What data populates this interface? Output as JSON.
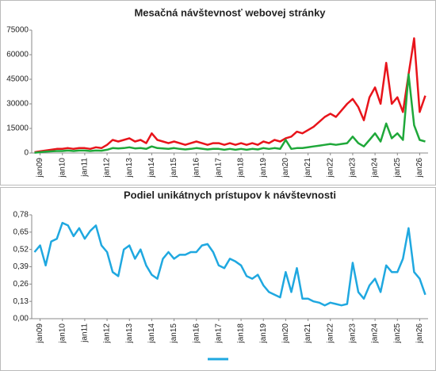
{
  "chart_data": [
    {
      "type": "line",
      "title": "Mesačná návštevnosť webovej stránky",
      "categories": [
        null,
        "jan09",
        null,
        null,
        null,
        "jan10",
        null,
        null,
        null,
        "jan11",
        null,
        null,
        null,
        "jan12",
        null,
        null,
        null,
        "jan13",
        null,
        null,
        null,
        "jan14",
        null,
        null,
        null,
        "jan15",
        null,
        null,
        null,
        "jan16",
        null,
        null,
        null,
        "jan17",
        null,
        null,
        null,
        "jan18",
        null,
        null,
        null,
        "jan19",
        null,
        null,
        null,
        "jan20",
        null,
        null,
        null,
        "jan21",
        null,
        null,
        null,
        "jan22",
        null,
        null,
        null,
        "jan23",
        null,
        null,
        null,
        "jan24",
        null,
        null,
        null,
        "jan25",
        null,
        null,
        null,
        "jan26",
        null
      ],
      "series": [
        {
          "color": "#e8141b",
          "values": [
            500,
            1000,
            1500,
            2000,
            2500,
            2500,
            3000,
            2500,
            3000,
            3000,
            2500,
            3500,
            3000,
            5000,
            8000,
            7000,
            8000,
            9000,
            7000,
            8000,
            6000,
            12000,
            8000,
            7000,
            6000,
            7000,
            6000,
            5000,
            6000,
            7000,
            6000,
            5000,
            6000,
            6000,
            5000,
            6000,
            5000,
            6000,
            5000,
            6000,
            5000,
            7000,
            6000,
            8000,
            7000,
            9000,
            10000,
            13000,
            12000,
            14000,
            16000,
            19000,
            22000,
            24000,
            22000,
            26000,
            30000,
            33000,
            28000,
            20000,
            34000,
            40000,
            30000,
            55000,
            30000,
            34000,
            25000,
            48000,
            70000,
            25000,
            35000
          ]
        },
        {
          "color": "#1fa83a",
          "values": [
            200,
            500,
            800,
            1000,
            1200,
            1200,
            1500,
            1200,
            1500,
            1500,
            1200,
            1500,
            1400,
            2000,
            3000,
            2800,
            3000,
            3500,
            2800,
            3000,
            2500,
            4000,
            3000,
            2800,
            2500,
            3000,
            2500,
            2200,
            2500,
            3000,
            2600,
            2200,
            2500,
            2500,
            2000,
            2500,
            2000,
            2500,
            2000,
            2500,
            2200,
            3000,
            2500,
            3000,
            2500,
            8000,
            2500,
            3000,
            3000,
            3500,
            4000,
            4500,
            5000,
            5500,
            5000,
            5500,
            6000,
            10000,
            6000,
            4000,
            8000,
            12000,
            7000,
            18000,
            9000,
            12000,
            8000,
            48000,
            17000,
            8000,
            7000
          ]
        }
      ],
      "ylim": [
        0,
        75000
      ],
      "yticks": [
        0,
        15000,
        30000,
        45000,
        60000,
        75000
      ]
    },
    {
      "type": "line",
      "title": "Podiel unikátnych prístupov k návštevnosti",
      "categories": [
        null,
        "jan09",
        null,
        null,
        null,
        "jan10",
        null,
        null,
        null,
        "jan11",
        null,
        null,
        null,
        "jan12",
        null,
        null,
        null,
        "jan13",
        null,
        null,
        null,
        "jan14",
        null,
        null,
        null,
        "jan15",
        null,
        null,
        null,
        "jan16",
        null,
        null,
        null,
        "jan17",
        null,
        null,
        null,
        "jan18",
        null,
        null,
        null,
        "jan19",
        null,
        null,
        null,
        "jan20",
        null,
        null,
        null,
        "jan21",
        null,
        null,
        null,
        "jan22",
        null,
        null,
        null,
        "jan23",
        null,
        null,
        null,
        "jan24",
        null,
        null,
        null,
        "jan25",
        null,
        null,
        null,
        "jan26",
        null
      ],
      "series": [
        {
          "color": "#1fa8e0",
          "values": [
            0.5,
            0.55,
            0.4,
            0.58,
            0.6,
            0.72,
            0.7,
            0.62,
            0.68,
            0.6,
            0.66,
            0.7,
            0.55,
            0.5,
            0.35,
            0.32,
            0.52,
            0.55,
            0.45,
            0.52,
            0.4,
            0.33,
            0.3,
            0.45,
            0.5,
            0.45,
            0.48,
            0.48,
            0.5,
            0.5,
            0.55,
            0.56,
            0.5,
            0.4,
            0.38,
            0.45,
            0.43,
            0.4,
            0.32,
            0.3,
            0.33,
            0.25,
            0.2,
            0.18,
            0.16,
            0.35,
            0.2,
            0.38,
            0.15,
            0.15,
            0.13,
            0.12,
            0.1,
            0.12,
            0.11,
            0.1,
            0.11,
            0.42,
            0.2,
            0.15,
            0.25,
            0.3,
            0.2,
            0.4,
            0.35,
            0.35,
            0.45,
            0.68,
            0.35,
            0.3,
            0.18
          ]
        }
      ],
      "ylim": [
        0,
        0.78
      ],
      "yticks": [
        {
          "value": 0,
          "label": "0,00"
        },
        {
          "value": 0.13,
          "label": "0,13"
        },
        {
          "value": 0.26,
          "label": "0,26"
        },
        {
          "value": 0.39,
          "label": "0,39"
        },
        {
          "value": 0.52,
          "label": "0,52"
        },
        {
          "value": 0.65,
          "label": "0,65"
        },
        {
          "value": 0.78,
          "label": "0,78"
        }
      ],
      "legend": "bottom"
    }
  ]
}
